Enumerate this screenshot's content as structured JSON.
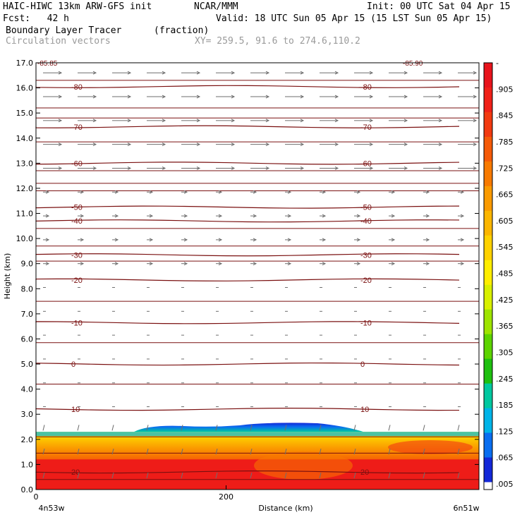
{
  "header": {
    "model": "HAIC-HIWC 13km ARW-GFS init",
    "org": "NCAR/MMM",
    "init": "Init: 00 UTC Sat 04 Apr 15",
    "fcst": "Fcst:   42 h",
    "valid": "Valid: 18 UTC Sun 05 Apr 15 (15 LST Sun 05 Apr 15)",
    "field": "Boundary Layer Tracer",
    "units": "(fraction)",
    "vectors": "Circulation vectors",
    "xy": "XY= 259.5, 91.6 to 274.6,110.2"
  },
  "chart_data": {
    "type": "heatmap",
    "xlabel": "Distance (km)",
    "ylabel": "Height (km)",
    "xlim": [
      0,
      466
    ],
    "ylim": [
      0.0,
      17.0
    ],
    "x_ticks": [
      0,
      200
    ],
    "y_ticks": [
      "0.0",
      "1.0",
      "2.0",
      "3.0",
      "4.0",
      "5.0",
      "6.0",
      "7.0",
      "8.0",
      "9.0",
      "10.0",
      "11.0",
      "12.0",
      "13.0",
      "14.0",
      "15.0",
      "16.0",
      "17.0"
    ],
    "x_endpoints": [
      "4n53w",
      "6n51w"
    ],
    "colorbar": {
      "labels": [
        "-",
        ".905",
        ".845",
        ".785",
        ".725",
        ".665",
        ".605",
        ".545",
        ".485",
        ".425",
        ".365",
        ".305",
        ".245",
        ".185",
        ".125",
        ".065",
        ".005"
      ],
      "colors": [
        "#e8141c",
        "#f02018",
        "#f23a10",
        "#f55a08",
        "#f87a00",
        "#fa9a00",
        "#fcb600",
        "#ffd200",
        "#ffee00",
        "#d8f000",
        "#9ee400",
        "#5cd400",
        "#1ec010",
        "#00c8a0",
        "#00b4e8",
        "#0a6ef0",
        "#1428d8"
      ]
    },
    "temperature_contours": [
      {
        "value": "-80",
        "height": 16.05
      },
      {
        "value": "-70",
        "height": 14.45
      },
      {
        "value": "-60",
        "height": 13.0
      },
      {
        "value": "-50",
        "height": 11.25
      },
      {
        "value": "-40",
        "height": 10.7
      },
      {
        "value": "-30",
        "height": 9.35
      },
      {
        "value": "-20",
        "height": 8.35
      },
      {
        "value": "-10",
        "height": 6.65
      },
      {
        "value": "0",
        "height": 5.0
      },
      {
        "value": "10",
        "height": 3.2
      },
      {
        "value": "20",
        "height": 0.7
      }
    ],
    "contour_label_top": "-85.85",
    "contour_label_top_right": "-85.90",
    "tracer_layer_top_km": 2.3
  }
}
